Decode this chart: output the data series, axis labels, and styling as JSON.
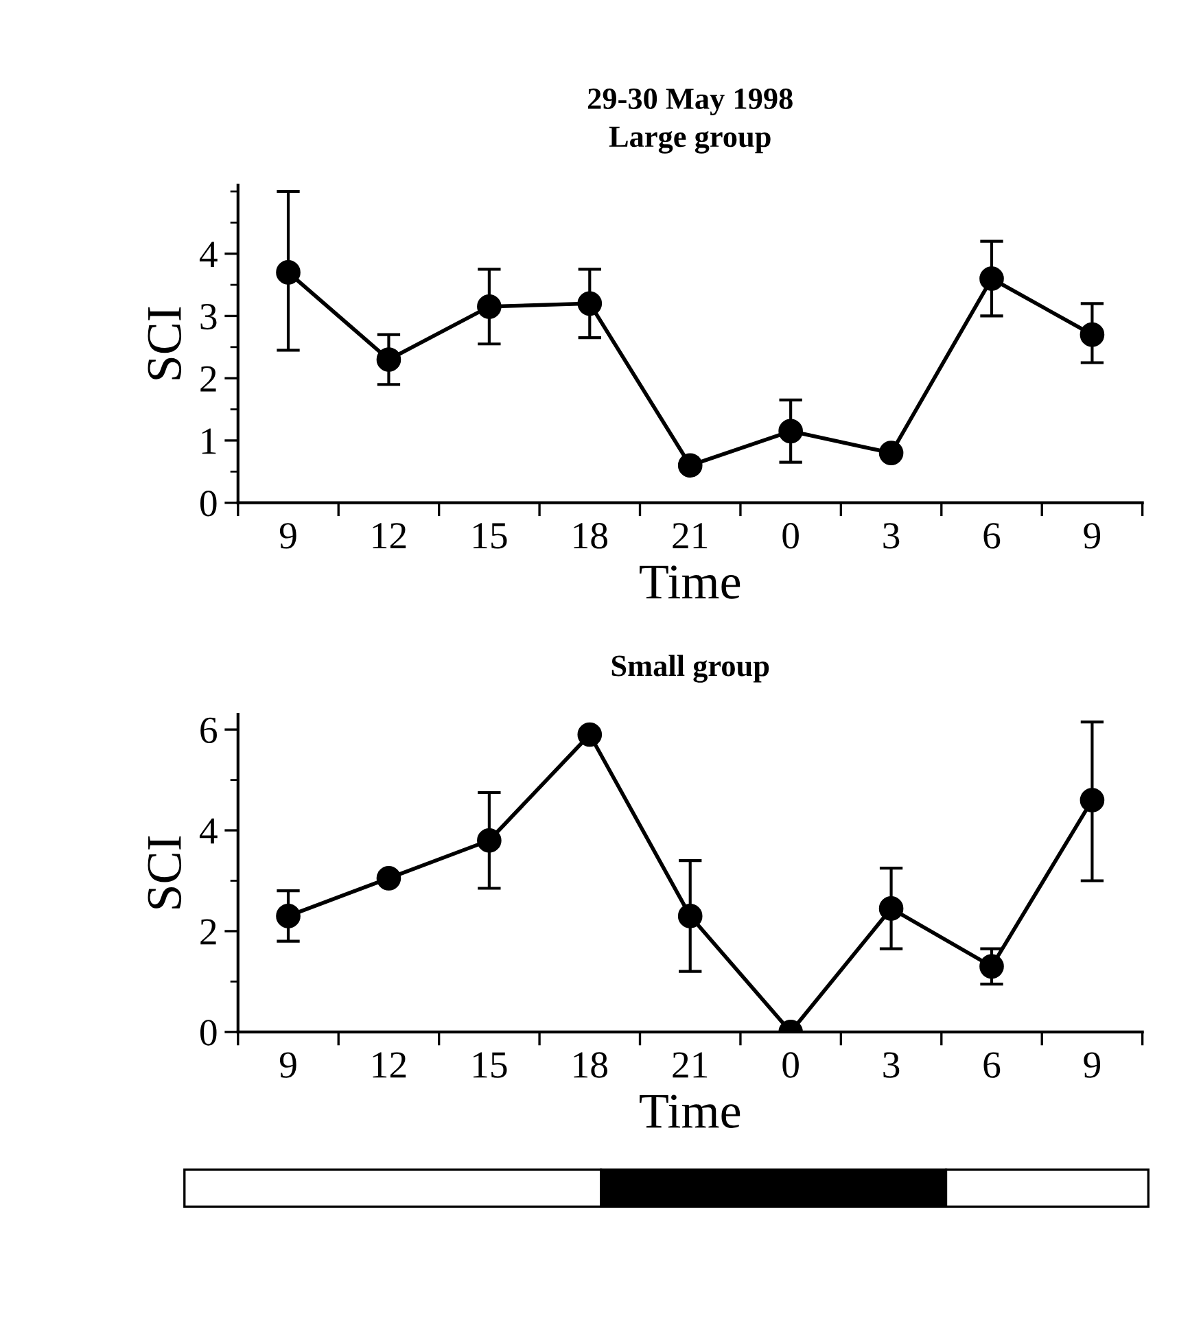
{
  "chart_data": [
    {
      "type": "line",
      "title": "29-30 May 1998",
      "subtitle": "Large group",
      "xlabel": "Time",
      "ylabel": "SCI",
      "categories": [
        "9",
        "12",
        "15",
        "18",
        "21",
        "0",
        "3",
        "6",
        "9"
      ],
      "series": [
        {
          "color": "#000000",
          "marker": "circle",
          "line_style": "solid",
          "values": [
            3.7,
            2.3,
            3.15,
            3.2,
            0.6,
            1.15,
            0.8,
            3.6,
            2.7
          ],
          "errors": [
            [
              2.45,
              5.0
            ],
            [
              1.9,
              2.7
            ],
            [
              2.55,
              3.75
            ],
            [
              2.65,
              3.75
            ],
            null,
            [
              0.65,
              1.65
            ],
            null,
            [
              3.0,
              4.2
            ],
            [
              2.25,
              3.2
            ]
          ]
        }
      ],
      "ylim": [
        0,
        5.1
      ],
      "yticks": [
        0,
        1,
        2,
        3,
        4
      ],
      "grid": false,
      "legend": false
    },
    {
      "type": "line",
      "title": "Small group",
      "xlabel": "Time",
      "ylabel": "SCI",
      "categories": [
        "9",
        "12",
        "15",
        "18",
        "21",
        "0",
        "3",
        "6",
        "9"
      ],
      "series": [
        {
          "color": "#000000",
          "marker": "circle",
          "line_style": "solid",
          "values": [
            2.3,
            3.05,
            3.8,
            5.9,
            2.3,
            0.0,
            2.45,
            1.3,
            4.6
          ],
          "errors": [
            [
              1.8,
              2.8
            ],
            null,
            [
              2.85,
              4.75
            ],
            null,
            [
              1.2,
              3.4
            ],
            null,
            [
              1.65,
              3.25
            ],
            [
              0.95,
              1.65
            ],
            [
              3.0,
              6.15
            ]
          ]
        }
      ],
      "ylim": [
        0,
        6.3
      ],
      "yticks": [
        0,
        2,
        4,
        6
      ],
      "grid": false,
      "legend": false
    }
  ]
}
